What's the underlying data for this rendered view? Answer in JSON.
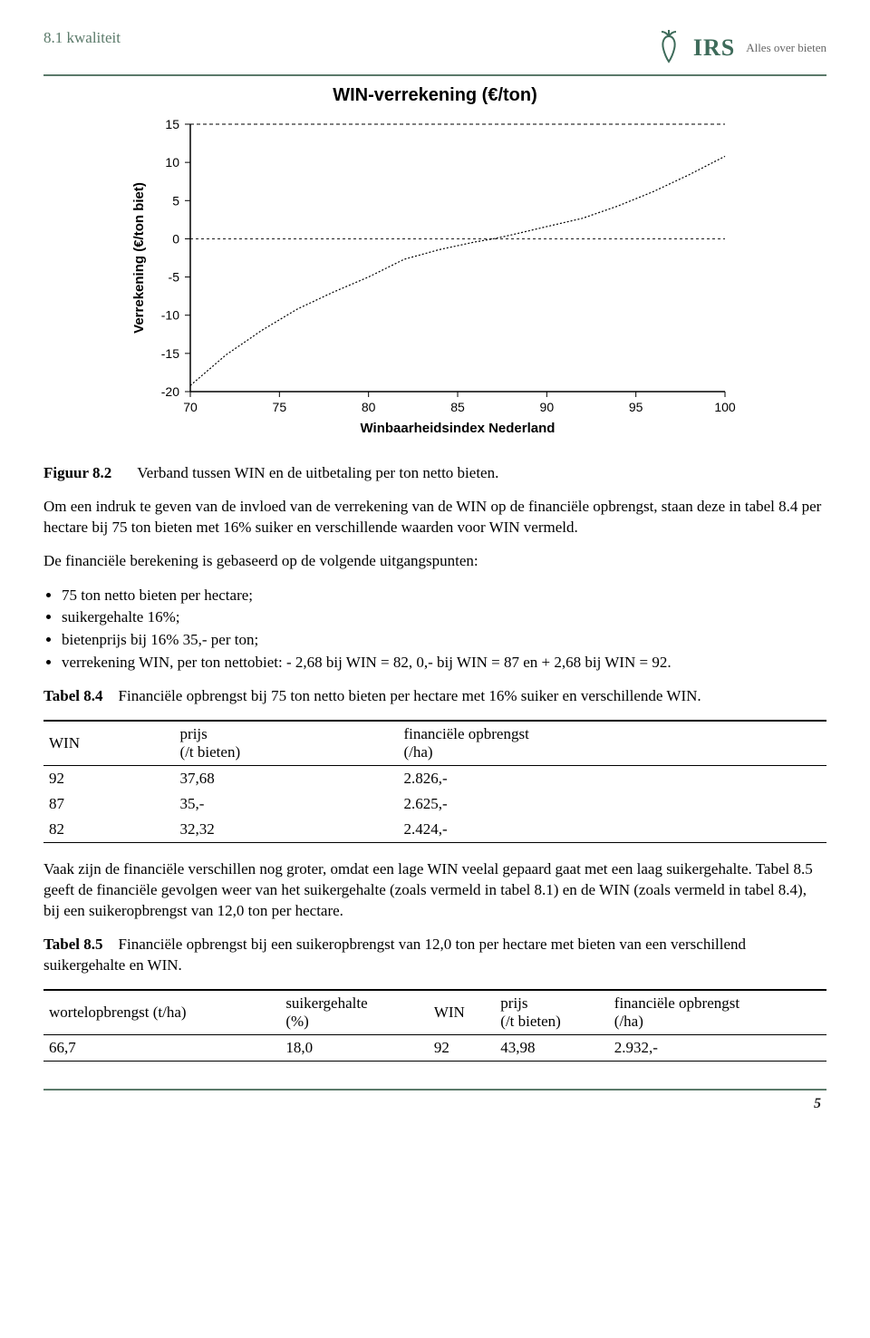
{
  "header": {
    "section_label": "8.1 kwaliteit",
    "logo_name": "IRS",
    "logo_tagline": "Alles over bieten",
    "logo_color": "#3e6b5a"
  },
  "chart": {
    "type": "line",
    "title": "WIN-verrekening (€/ton)",
    "xlabel": "Winbaarheidsindex Nederland",
    "ylabel": "Verrekening (€/ton biet)",
    "xlim": [
      70,
      100
    ],
    "ylim": [
      -20,
      15
    ],
    "xticks": [
      70,
      75,
      80,
      85,
      90,
      95,
      100
    ],
    "yticks": [
      -20,
      -15,
      -10,
      -5,
      0,
      5,
      10,
      15
    ],
    "tick_fontsize": 14,
    "label_fontsize": 15,
    "title_fontsize": 20,
    "background_color": "#ffffff",
    "axis_color": "#000000",
    "line_color": "#000000",
    "line_width": 1.2,
    "grid": false,
    "refline_y": 15,
    "refline_dash": "4 3",
    "zeroline_y": 0,
    "zeroline_dash": "3 3",
    "series": [
      {
        "x": 70,
        "y": -19.2
      },
      {
        "x": 72,
        "y": -15.2
      },
      {
        "x": 74,
        "y": -12.0
      },
      {
        "x": 76,
        "y": -9.2
      },
      {
        "x": 78,
        "y": -7.0
      },
      {
        "x": 80,
        "y": -5.0
      },
      {
        "x": 82,
        "y": -2.68
      },
      {
        "x": 84,
        "y": -1.4
      },
      {
        "x": 86,
        "y": -0.4
      },
      {
        "x": 87,
        "y": 0.0
      },
      {
        "x": 88,
        "y": 0.5
      },
      {
        "x": 90,
        "y": 1.6
      },
      {
        "x": 92,
        "y": 2.68
      },
      {
        "x": 94,
        "y": 4.3
      },
      {
        "x": 96,
        "y": 6.2
      },
      {
        "x": 98,
        "y": 8.4
      },
      {
        "x": 100,
        "y": 10.8
      }
    ]
  },
  "figure": {
    "label": "Figuur 8.2",
    "caption": "Verband tussen WIN en de uitbetaling per ton netto bieten."
  },
  "para1": "Om een indruk te geven van de invloed van de verrekening van de WIN op de financiële opbrengst, staan deze in tabel 8.4 per hectare bij 75 ton bieten met 16% suiker en verschillende waarden voor WIN vermeld.",
  "para2": "De financiële berekening is gebaseerd op de volgende uitgangspunten:",
  "assumptions": [
    "75 ton netto bieten per hectare;",
    "suikergehalte 16%;",
    "bietenprijs bij 16% 35,- per ton;",
    "verrekening WIN, per ton nettobiet: - 2,68 bij WIN = 82, 0,- bij WIN = 87 en + 2,68 bij WIN = 92."
  ],
  "table84": {
    "label": "Tabel 8.4",
    "caption": "Financiële opbrengst bij 75 ton netto bieten per hectare met 16% suiker en verschillende WIN.",
    "columns": [
      {
        "head1": "WIN",
        "head2": ""
      },
      {
        "head1": "prijs",
        "head2": "(/t bieten)"
      },
      {
        "head1": "financiële opbrengst",
        "head2": "(/ha)"
      }
    ],
    "rows": [
      [
        "92",
        "37,68",
        "2.826,-"
      ],
      [
        "87",
        "35,-",
        "2.625,-"
      ],
      [
        "82",
        "32,32",
        "2.424,-"
      ]
    ]
  },
  "para3": "Vaak zijn de financiële verschillen nog groter, omdat een lage WIN veelal gepaard gaat met een laag suikergehalte. Tabel 8.5 geeft de financiële gevolgen weer van het suikergehalte (zoals vermeld in tabel 8.1) en de WIN (zoals vermeld in tabel 8.4), bij een suikeropbrengst van 12,0 ton per hectare.",
  "table85": {
    "label": "Tabel 8.5",
    "caption": "Financiële opbrengst bij een suikeropbrengst van 12,0 ton per hectare met bieten van een verschillend suikergehalte en WIN.",
    "columns": [
      {
        "head1": "wortelopbrengst (t/ha)",
        "head2": ""
      },
      {
        "head1": "suikergehalte",
        "head2": "(%)"
      },
      {
        "head1": "WIN",
        "head2": ""
      },
      {
        "head1": "prijs",
        "head2": "(/t bieten)"
      },
      {
        "head1": "financiële opbrengst",
        "head2": "(/ha)"
      }
    ],
    "rows": [
      [
        "66,7",
        "18,0",
        "92",
        "43,98",
        "2.932,-"
      ]
    ]
  },
  "page_number": "5"
}
